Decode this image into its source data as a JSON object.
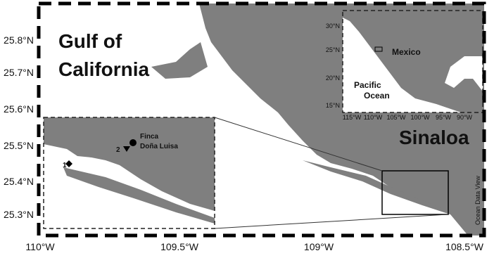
{
  "map": {
    "lat_labels": [
      "25.8°N",
      "25.7°N",
      "25.6°N",
      "25.5°N",
      "25.4°N",
      "25.3°N"
    ],
    "lon_labels": [
      "110°W",
      "109.5°W",
      "109°W",
      "108.5°W"
    ],
    "gulf_label": [
      "Gulf of",
      "California"
    ],
    "state_label": "Sinaloa",
    "credit": "Ocean Data View",
    "detail_inset": {
      "site_labels": [
        "1",
        "2"
      ],
      "farm_label": [
        "Finca",
        "Doña Luisa"
      ]
    },
    "locator_inset": {
      "lat_labels": [
        "30°N",
        "25°N",
        "20°N",
        "15°N"
      ],
      "lon_labels": [
        "115°W",
        "110°W",
        "105°W",
        "100°W",
        "95°W",
        "90°W"
      ],
      "country_label": "Mexico",
      "ocean_label": [
        "Pacific",
        "Ocean"
      ]
    }
  }
}
